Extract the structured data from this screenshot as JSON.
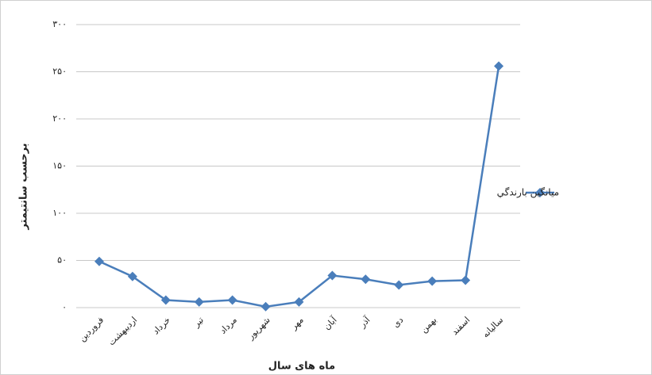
{
  "chart_data": {
    "type": "line",
    "y_label": "برحسب سانتیمتر",
    "x_label": "ماه های سال",
    "categories": [
      "فروردین",
      "اردیبهشت",
      "خرداد",
      "تیر",
      "مرداد",
      "شهریور",
      "مهر",
      "آبان",
      "آذر",
      "دی",
      "بهمن",
      "اسفند",
      "سالیانه"
    ],
    "series": [
      {
        "name": "ميانگين بارندگي",
        "color": "#4a7ebb",
        "values": [
          49,
          33,
          8,
          6,
          8,
          1,
          6,
          34,
          30,
          24,
          28,
          29,
          256
        ]
      }
    ],
    "ylim": [
      0,
      300
    ],
    "yticks": [
      {
        "value": 0,
        "label": "۰"
      },
      {
        "value": 50,
        "label": "۵۰"
      },
      {
        "value": 100,
        "label": "۱۰۰"
      },
      {
        "value": 150,
        "label": "۱۵۰"
      },
      {
        "value": 200,
        "label": "۲۰۰"
      },
      {
        "value": 250,
        "label": "۲۵۰"
      },
      {
        "value": 300,
        "label": "۳۰۰"
      }
    ],
    "grid": true,
    "legend": "right"
  }
}
